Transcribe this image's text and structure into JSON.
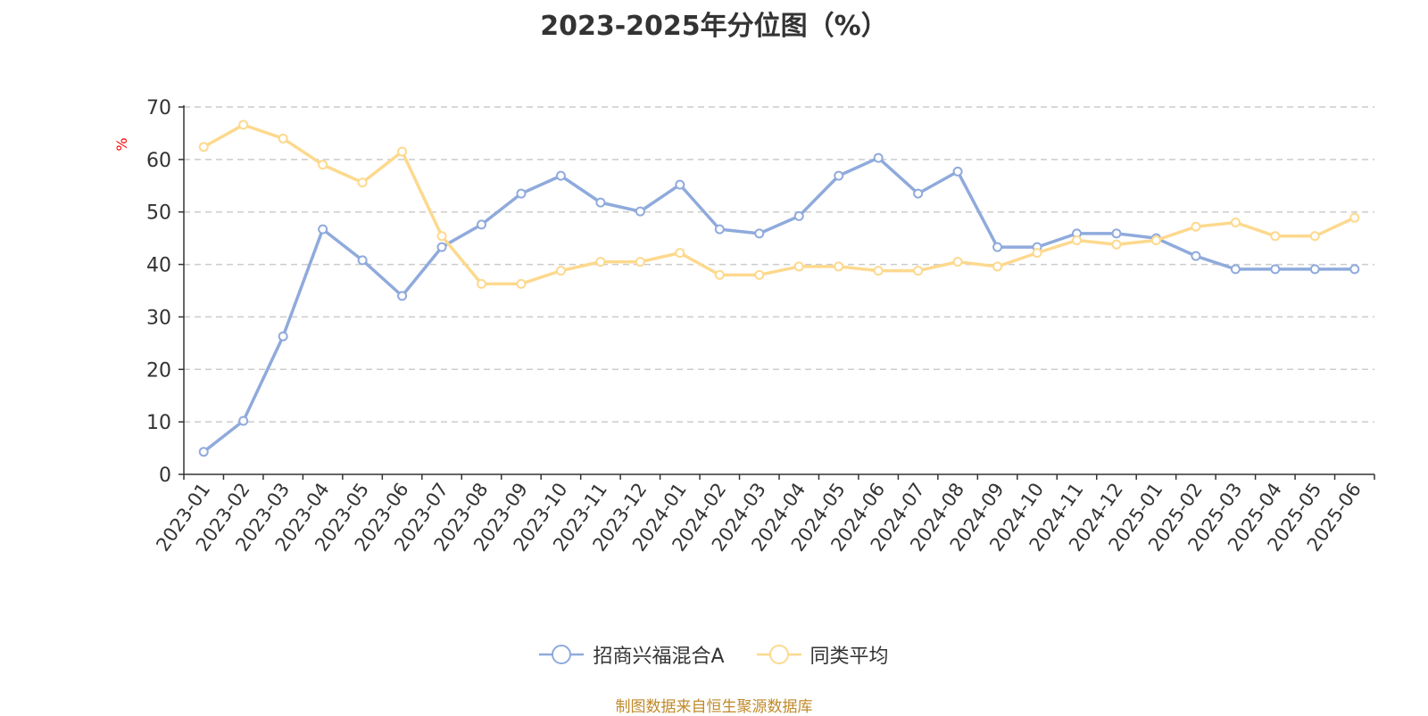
{
  "chart_data": {
    "type": "line",
    "title": "2023-2025年分位图（%）",
    "ylabel": "%",
    "xlabel": "",
    "ylim": [
      0,
      70
    ],
    "yticks": [
      0,
      10,
      20,
      30,
      40,
      50,
      60,
      70
    ],
    "grid": "horizontal dashed",
    "legend_position": "bottom-center",
    "categories": [
      "2023-01",
      "2023-02",
      "2023-03",
      "2023-04",
      "2023-05",
      "2023-06",
      "2023-07",
      "2023-08",
      "2023-09",
      "2023-10",
      "2023-11",
      "2023-12",
      "2024-01",
      "2024-02",
      "2024-03",
      "2024-04",
      "2024-05",
      "2024-06",
      "2024-07",
      "2024-08",
      "2024-09",
      "2024-10",
      "2024-11",
      "2024-12",
      "2025-01",
      "2025-02",
      "2025-03",
      "2025-04",
      "2025-05",
      "2025-06"
    ],
    "series": [
      {
        "name": "招商兴福混合A",
        "color": "#8faadc",
        "values": [
          4.3,
          10.2,
          26.3,
          46.7,
          40.8,
          34.0,
          43.3,
          47.6,
          53.5,
          56.9,
          51.8,
          50.1,
          55.2,
          46.7,
          45.9,
          49.2,
          56.9,
          60.3,
          53.5,
          57.7,
          43.3,
          43.3,
          45.9,
          45.9,
          45.0,
          41.6,
          39.1,
          39.1,
          39.1,
          39.1
        ]
      },
      {
        "name": "同类平均",
        "color": "#fdd98e",
        "values": [
          62.4,
          66.6,
          64.0,
          59.0,
          55.6,
          61.5,
          45.4,
          36.3,
          36.3,
          38.8,
          40.5,
          40.5,
          42.2,
          38.0,
          38.0,
          39.6,
          39.6,
          38.8,
          38.8,
          40.5,
          39.6,
          42.2,
          44.6,
          43.8,
          44.6,
          47.2,
          48.0,
          45.4,
          45.4,
          48.9
        ]
      }
    ]
  },
  "source_note": "制图数据来自恒生聚源数据库"
}
